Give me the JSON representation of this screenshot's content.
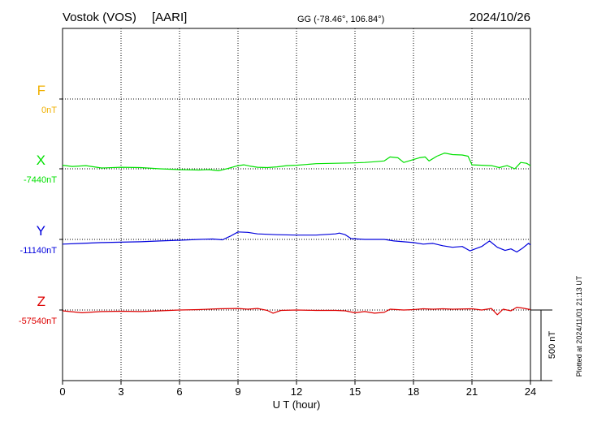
{
  "chart_data": {
    "type": "line",
    "station": "Vostok (VOS)",
    "institute": "[AARI]",
    "coords": "GG (-78.46°, 106.84°)",
    "date": "2024/10/26",
    "xlabel": "U T (hour)",
    "xlim": [
      0,
      24
    ],
    "xticks": [
      "0",
      "3",
      "6",
      "9",
      "12",
      "15",
      "18",
      "21",
      "24"
    ],
    "scale_label": "500 nT",
    "plotted_label": "Plotted at 2024/11/01 21:13 UT",
    "series": [
      {
        "key": "F",
        "name": "F",
        "baseline_label": "0nT",
        "color": "#f0b000",
        "points": []
      },
      {
        "key": "X",
        "name": "X",
        "baseline_label": "-7440nT",
        "color": "#00e000",
        "points": [
          [
            0,
            -7395
          ],
          [
            0.5,
            -7410
          ],
          [
            1.2,
            -7400
          ],
          [
            2.0,
            -7430
          ],
          [
            3.0,
            -7420
          ],
          [
            4.0,
            -7425
          ],
          [
            5.0,
            -7440
          ],
          [
            6.0,
            -7450
          ],
          [
            7.0,
            -7455
          ],
          [
            7.5,
            -7450
          ],
          [
            8.0,
            -7465
          ],
          [
            8.5,
            -7435
          ],
          [
            9.0,
            -7400
          ],
          [
            9.3,
            -7390
          ],
          [
            9.6,
            -7405
          ],
          [
            10.0,
            -7420
          ],
          [
            10.5,
            -7425
          ],
          [
            11.0,
            -7415
          ],
          [
            11.5,
            -7400
          ],
          [
            12.0,
            -7395
          ],
          [
            12.5,
            -7385
          ],
          [
            13.0,
            -7375
          ],
          [
            14.0,
            -7370
          ],
          [
            15.0,
            -7365
          ],
          [
            15.5,
            -7360
          ],
          [
            16.0,
            -7350
          ],
          [
            16.5,
            -7340
          ],
          [
            16.8,
            -7290
          ],
          [
            17.2,
            -7300
          ],
          [
            17.5,
            -7360
          ],
          [
            17.9,
            -7330
          ],
          [
            18.3,
            -7300
          ],
          [
            18.6,
            -7290
          ],
          [
            18.8,
            -7340
          ],
          [
            19.2,
            -7280
          ],
          [
            19.6,
            -7240
          ],
          [
            20.0,
            -7260
          ],
          [
            20.5,
            -7265
          ],
          [
            20.8,
            -7280
          ],
          [
            21.0,
            -7390
          ],
          [
            21.5,
            -7395
          ],
          [
            22.0,
            -7400
          ],
          [
            22.4,
            -7425
          ],
          [
            22.8,
            -7400
          ],
          [
            23.2,
            -7440
          ],
          [
            23.5,
            -7360
          ],
          [
            23.8,
            -7370
          ],
          [
            24.0,
            -7400
          ]
        ]
      },
      {
        "key": "Y",
        "name": "Y",
        "baseline_label": "-11140nT",
        "color": "#0000dd",
        "points": [
          [
            0,
            -11200
          ],
          [
            1,
            -11190
          ],
          [
            2,
            -11180
          ],
          [
            3,
            -11175
          ],
          [
            4,
            -11170
          ],
          [
            5,
            -11160
          ],
          [
            6,
            -11150
          ],
          [
            7,
            -11140
          ],
          [
            7.7,
            -11135
          ],
          [
            8.2,
            -11145
          ],
          [
            8.6,
            -11100
          ],
          [
            9.0,
            -11045
          ],
          [
            9.5,
            -11050
          ],
          [
            10.0,
            -11070
          ],
          [
            11.0,
            -11080
          ],
          [
            12.0,
            -11085
          ],
          [
            13.0,
            -11085
          ],
          [
            14.0,
            -11070
          ],
          [
            14.2,
            -11060
          ],
          [
            14.5,
            -11080
          ],
          [
            14.8,
            -11130
          ],
          [
            15.5,
            -11140
          ],
          [
            16.5,
            -11140
          ],
          [
            17.0,
            -11160
          ],
          [
            18.0,
            -11180
          ],
          [
            18.5,
            -11200
          ],
          [
            19.0,
            -11190
          ],
          [
            19.5,
            -11220
          ],
          [
            20.0,
            -11240
          ],
          [
            20.5,
            -11230
          ],
          [
            20.9,
            -11285
          ],
          [
            21.5,
            -11230
          ],
          [
            21.9,
            -11160
          ],
          [
            22.3,
            -11240
          ],
          [
            22.7,
            -11280
          ],
          [
            23.0,
            -11260
          ],
          [
            23.3,
            -11300
          ],
          [
            23.6,
            -11250
          ],
          [
            23.9,
            -11190
          ],
          [
            24.0,
            -11210
          ]
        ]
      },
      {
        "key": "Z",
        "name": "Z",
        "baseline_label": "-57540nT",
        "color": "#dd0000",
        "points": [
          [
            0,
            -57550
          ],
          [
            1,
            -57575
          ],
          [
            2,
            -57560
          ],
          [
            3,
            -57555
          ],
          [
            4,
            -57560
          ],
          [
            5,
            -57550
          ],
          [
            6,
            -57540
          ],
          [
            7,
            -57535
          ],
          [
            8,
            -57525
          ],
          [
            9,
            -57520
          ],
          [
            9.5,
            -57530
          ],
          [
            10.0,
            -57520
          ],
          [
            10.5,
            -57545
          ],
          [
            10.8,
            -57580
          ],
          [
            11.2,
            -57545
          ],
          [
            12.0,
            -57540
          ],
          [
            13.0,
            -57545
          ],
          [
            14.0,
            -57545
          ],
          [
            14.5,
            -57550
          ],
          [
            15.0,
            -57575
          ],
          [
            15.5,
            -57560
          ],
          [
            16.0,
            -57580
          ],
          [
            16.5,
            -57570
          ],
          [
            16.8,
            -57530
          ],
          [
            17.5,
            -57540
          ],
          [
            18.0,
            -57535
          ],
          [
            18.5,
            -57525
          ],
          [
            19.0,
            -57530
          ],
          [
            19.5,
            -57525
          ],
          [
            20.0,
            -57530
          ],
          [
            21.0,
            -57525
          ],
          [
            21.5,
            -57540
          ],
          [
            22.0,
            -57520
          ],
          [
            22.3,
            -57600
          ],
          [
            22.6,
            -57530
          ],
          [
            23.0,
            -57550
          ],
          [
            23.3,
            -57505
          ],
          [
            23.6,
            -57515
          ],
          [
            24.0,
            -57535
          ]
        ]
      }
    ],
    "units_per_px": 10.3
  }
}
